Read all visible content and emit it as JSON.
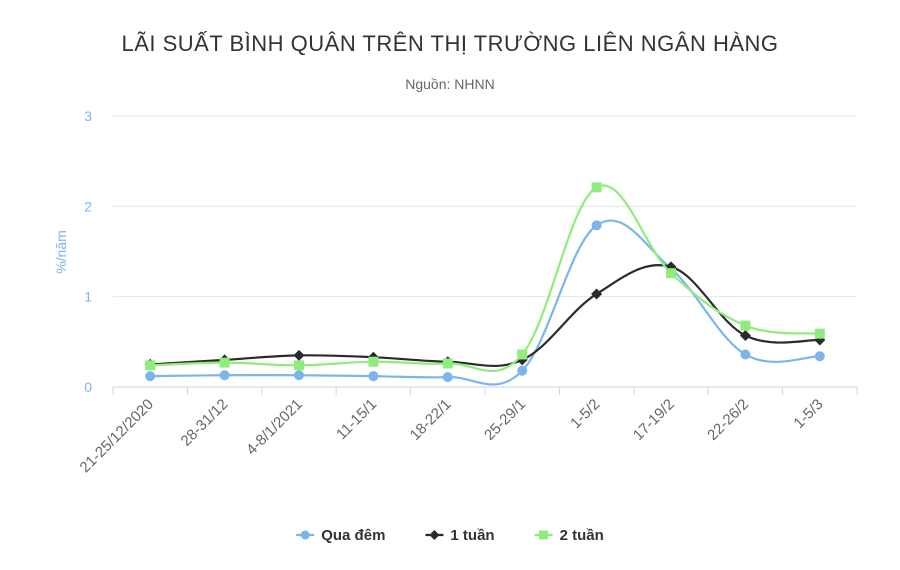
{
  "chart_data": {
    "type": "line",
    "title": "LÃI SUẤT BÌNH QUÂN TRÊN THỊ TRƯỜNG LIÊN NGÂN HÀNG",
    "subtitle": "Nguồn: NHNN",
    "ylabel": "%/năm",
    "xlabel": "",
    "ylim": [
      0,
      3
    ],
    "yticks": [
      "0",
      "1",
      "2",
      "3"
    ],
    "categories": [
      "21-25/12/2020",
      "28-31/12",
      "4-8/1/2021",
      "11-15/1",
      "18-22/1",
      "25-29/1",
      "1-5/2",
      "17-19/2",
      "22-26/2",
      "1-5/3"
    ],
    "series": [
      {
        "name": "Qua đêm",
        "color": "#7cb5ec",
        "marker": "circle",
        "values": [
          0.12,
          0.13,
          0.13,
          0.12,
          0.11,
          0.18,
          1.79,
          1.31,
          0.36,
          0.34
        ]
      },
      {
        "name": "1 tuần",
        "color": "#2b2b2b",
        "marker": "diamond",
        "values": [
          0.25,
          0.3,
          0.35,
          0.33,
          0.28,
          0.3,
          1.03,
          1.33,
          0.57,
          0.52
        ]
      },
      {
        "name": "2 tuần",
        "color": "#90ed7d",
        "marker": "square",
        "values": [
          0.24,
          0.27,
          0.24,
          0.28,
          0.26,
          0.36,
          2.21,
          1.26,
          0.68,
          0.59
        ]
      }
    ],
    "grid": true,
    "legend": "bottom-center"
  }
}
